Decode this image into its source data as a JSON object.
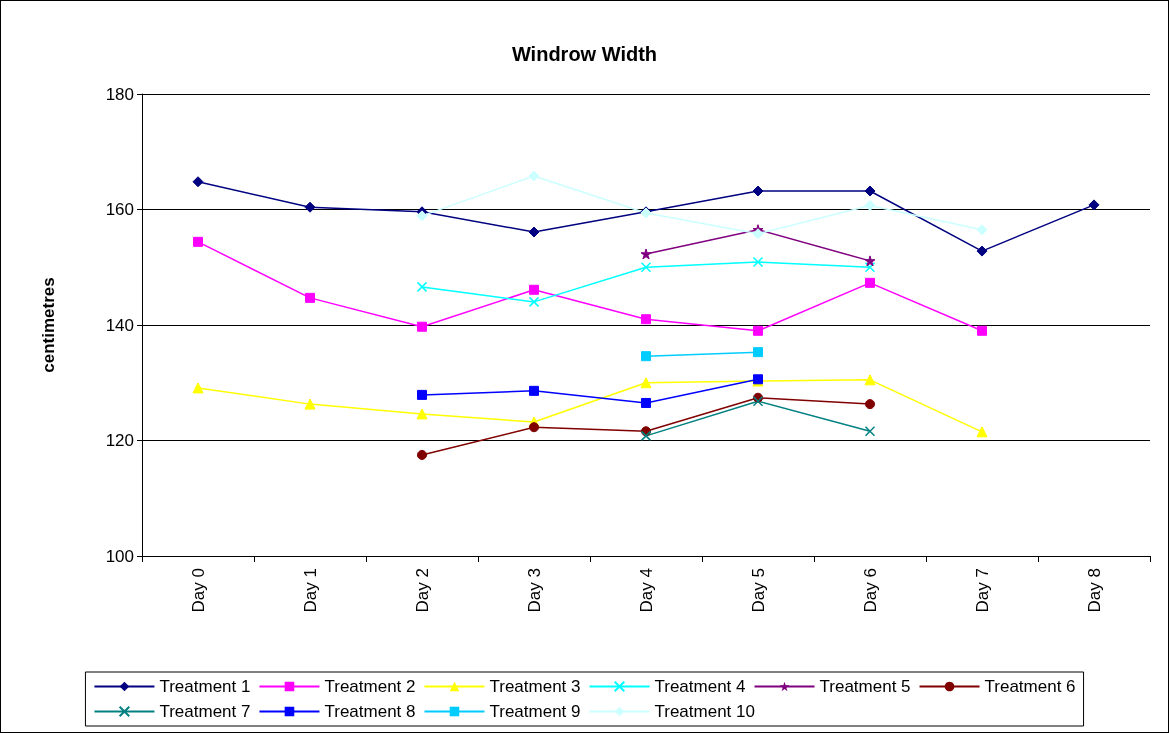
{
  "chart_data": {
    "type": "line",
    "title": "Windrow Width",
    "ylabel": "centimetres",
    "categories": [
      "Day 0",
      "Day 1",
      "Day 2",
      "Day 3",
      "Day 4",
      "Day 5",
      "Day 6",
      "Day 7",
      "Day 8"
    ],
    "ylim": [
      100,
      180
    ],
    "yticks": [
      100,
      120,
      140,
      160,
      180
    ],
    "grid": "y",
    "legend": "bottom",
    "series": [
      {
        "name": "Treatment 1",
        "color": "#000080",
        "marker": "diamond",
        "values": [
          164.8,
          160.4,
          159.6,
          156.1,
          159.6,
          163.2,
          163.2,
          152.8,
          160.8
        ]
      },
      {
        "name": "Treatment 2",
        "color": "#ff00ff",
        "marker": "square",
        "values": [
          154.4,
          144.7,
          139.7,
          146.1,
          141,
          139,
          147.3,
          139,
          null
        ]
      },
      {
        "name": "Treatment 3",
        "color": "#ffff00",
        "marker": "triangle",
        "values": [
          129.1,
          126.3,
          124.6,
          123.2,
          130,
          130.3,
          130.5,
          121.5,
          null
        ]
      },
      {
        "name": "Treatment 4",
        "color": "#00ffff",
        "marker": "cross",
        "values": [
          null,
          null,
          146.6,
          144,
          150,
          150.9,
          150,
          null,
          null
        ]
      },
      {
        "name": "Treatment 5",
        "color": "#800080",
        "marker": "star",
        "values": [
          null,
          null,
          null,
          null,
          152.3,
          156.5,
          151.1,
          null,
          null
        ]
      },
      {
        "name": "Treatment 6",
        "color": "#800000",
        "marker": "circle",
        "values": [
          null,
          null,
          117.5,
          122.3,
          121.6,
          127.4,
          126.3,
          null,
          null
        ]
      },
      {
        "name": "Treatment 7",
        "color": "#008080",
        "marker": "cross",
        "values": [
          null,
          null,
          null,
          null,
          120.8,
          126.8,
          121.6,
          null,
          null
        ]
      },
      {
        "name": "Treatment 8",
        "color": "#0000ff",
        "marker": "square",
        "values": [
          null,
          null,
          127.9,
          128.6,
          126.5,
          130.6,
          null,
          null,
          null
        ]
      },
      {
        "name": "Treatment 9",
        "color": "#00ccff",
        "marker": "square",
        "values": [
          null,
          null,
          null,
          null,
          134.6,
          135.3,
          null,
          null,
          null
        ]
      },
      {
        "name": "Treatment 10",
        "color": "#ccffff",
        "marker": "diamond",
        "values": [
          null,
          null,
          158.9,
          165.8,
          159.4,
          155.8,
          160.7,
          156.5,
          null
        ]
      }
    ]
  }
}
